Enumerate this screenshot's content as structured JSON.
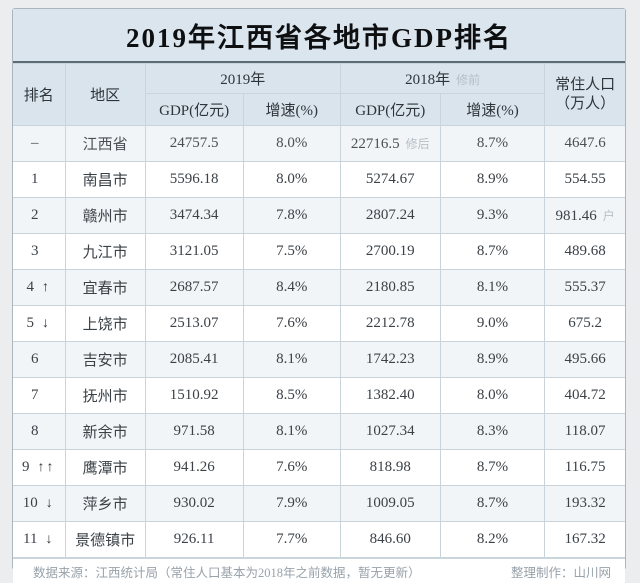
{
  "title": "2019年江西省各地市GDP排名",
  "header": {
    "rank": "排名",
    "region": "地区",
    "year_2019": "2019年",
    "year_2018": "2018年",
    "year_2018_note": "修前",
    "gdp_label": "GDP(亿元)",
    "growth_label": "增速(%)",
    "population_line1": "常住人口",
    "population_line2": "（万人）"
  },
  "footer": {
    "source": "数据来源：江西统计局（常住人口基本为2018年之前数据，暂无更新）",
    "credit": "整理制作：山川网"
  },
  "chart_data": {
    "type": "table",
    "title": "2019年江西省各地市GDP排名",
    "columns": [
      "排名",
      "地区",
      "2019年 GDP(亿元)",
      "2019年 增速(%)",
      "2018年 GDP(亿元)",
      "2018年 增速(%)",
      "常住人口(万人)"
    ],
    "rows": [
      {
        "rank": "–",
        "arrow": "",
        "region": "江西省",
        "gdp_2019": "24757.5",
        "growth_2019": "8.0%",
        "gdp_2018": "22716.5",
        "gdp_2018_note": "修后",
        "growth_2018": "8.7%",
        "population": "4647.6",
        "population_note": ""
      },
      {
        "rank": "1",
        "arrow": "",
        "region": "南昌市",
        "gdp_2019": "5596.18",
        "growth_2019": "8.0%",
        "gdp_2018": "5274.67",
        "gdp_2018_note": "",
        "growth_2018": "8.9%",
        "population": "554.55",
        "population_note": ""
      },
      {
        "rank": "2",
        "arrow": "",
        "region": "赣州市",
        "gdp_2019": "3474.34",
        "growth_2019": "7.8%",
        "gdp_2018": "2807.24",
        "gdp_2018_note": "",
        "growth_2018": "9.3%",
        "population": "981.46",
        "population_note": "户"
      },
      {
        "rank": "3",
        "arrow": "",
        "region": "九江市",
        "gdp_2019": "3121.05",
        "growth_2019": "7.5%",
        "gdp_2018": "2700.19",
        "gdp_2018_note": "",
        "growth_2018": "8.7%",
        "population": "489.68",
        "population_note": ""
      },
      {
        "rank": "4",
        "arrow": "↑",
        "region": "宜春市",
        "gdp_2019": "2687.57",
        "growth_2019": "8.4%",
        "gdp_2018": "2180.85",
        "gdp_2018_note": "",
        "growth_2018": "8.1%",
        "population": "555.37",
        "population_note": ""
      },
      {
        "rank": "5",
        "arrow": "↓",
        "region": "上饶市",
        "gdp_2019": "2513.07",
        "growth_2019": "7.6%",
        "gdp_2018": "2212.78",
        "gdp_2018_note": "",
        "growth_2018": "9.0%",
        "population": "675.2",
        "population_note": ""
      },
      {
        "rank": "6",
        "arrow": "",
        "region": "吉安市",
        "gdp_2019": "2085.41",
        "growth_2019": "8.1%",
        "gdp_2018": "1742.23",
        "gdp_2018_note": "",
        "growth_2018": "8.9%",
        "population": "495.66",
        "population_note": ""
      },
      {
        "rank": "7",
        "arrow": "",
        "region": "抚州市",
        "gdp_2019": "1510.92",
        "growth_2019": "8.5%",
        "gdp_2018": "1382.40",
        "gdp_2018_note": "",
        "growth_2018": "8.0%",
        "population": "404.72",
        "population_note": ""
      },
      {
        "rank": "8",
        "arrow": "",
        "region": "新余市",
        "gdp_2019": "971.58",
        "growth_2019": "8.1%",
        "gdp_2018": "1027.34",
        "gdp_2018_note": "",
        "growth_2018": "8.3%",
        "population": "118.07",
        "population_note": ""
      },
      {
        "rank": "9",
        "arrow": "↑↑",
        "region": "鹰潭市",
        "gdp_2019": "941.26",
        "growth_2019": "7.6%",
        "gdp_2018": "818.98",
        "gdp_2018_note": "",
        "growth_2018": "8.7%",
        "population": "116.75",
        "population_note": ""
      },
      {
        "rank": "10",
        "arrow": "↓",
        "region": "萍乡市",
        "gdp_2019": "930.02",
        "growth_2019": "7.9%",
        "gdp_2018": "1009.05",
        "gdp_2018_note": "",
        "growth_2018": "8.7%",
        "population": "193.32",
        "population_note": ""
      },
      {
        "rank": "11",
        "arrow": "↓",
        "region": "景德镇市",
        "gdp_2019": "926.11",
        "growth_2019": "7.7%",
        "gdp_2018": "846.60",
        "gdp_2018_note": "",
        "growth_2018": "8.2%",
        "population": "167.32",
        "population_note": ""
      }
    ]
  }
}
